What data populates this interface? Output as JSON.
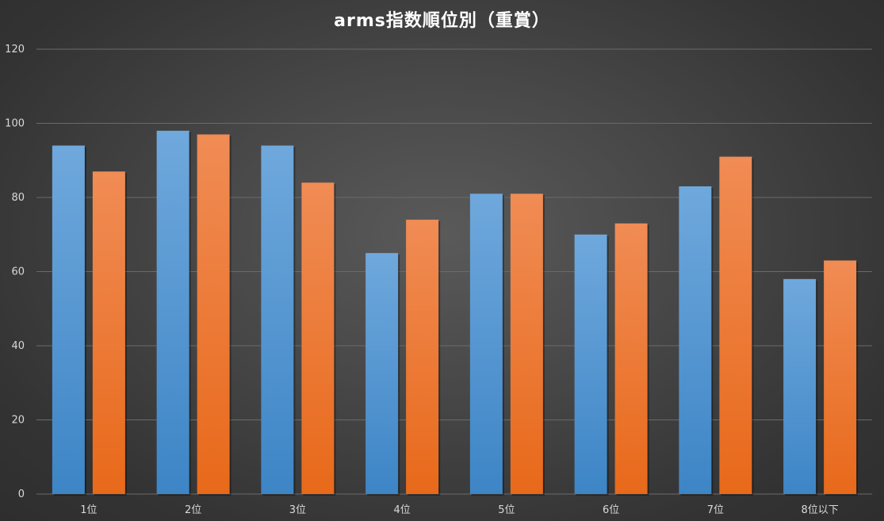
{
  "chart_data": {
    "type": "bar",
    "title": "arms指数順位別（重賞）",
    "xlabel": "",
    "ylabel": "",
    "categories": [
      "1位",
      "2位",
      "3位",
      "4位",
      "5位",
      "6位",
      "7位",
      "8位以下"
    ],
    "series": [
      {
        "values": [
          94,
          98,
          94,
          65,
          81,
          70,
          83,
          58
        ],
        "color": "#5b9bd5"
      },
      {
        "values": [
          87,
          97,
          84,
          74,
          81,
          73,
          91,
          63
        ],
        "color": "#ed7d31"
      }
    ],
    "ylim": [
      0,
      120
    ],
    "yticks": [
      0,
      20,
      40,
      60,
      80,
      100,
      120
    ],
    "grid": true,
    "legend": "none"
  }
}
